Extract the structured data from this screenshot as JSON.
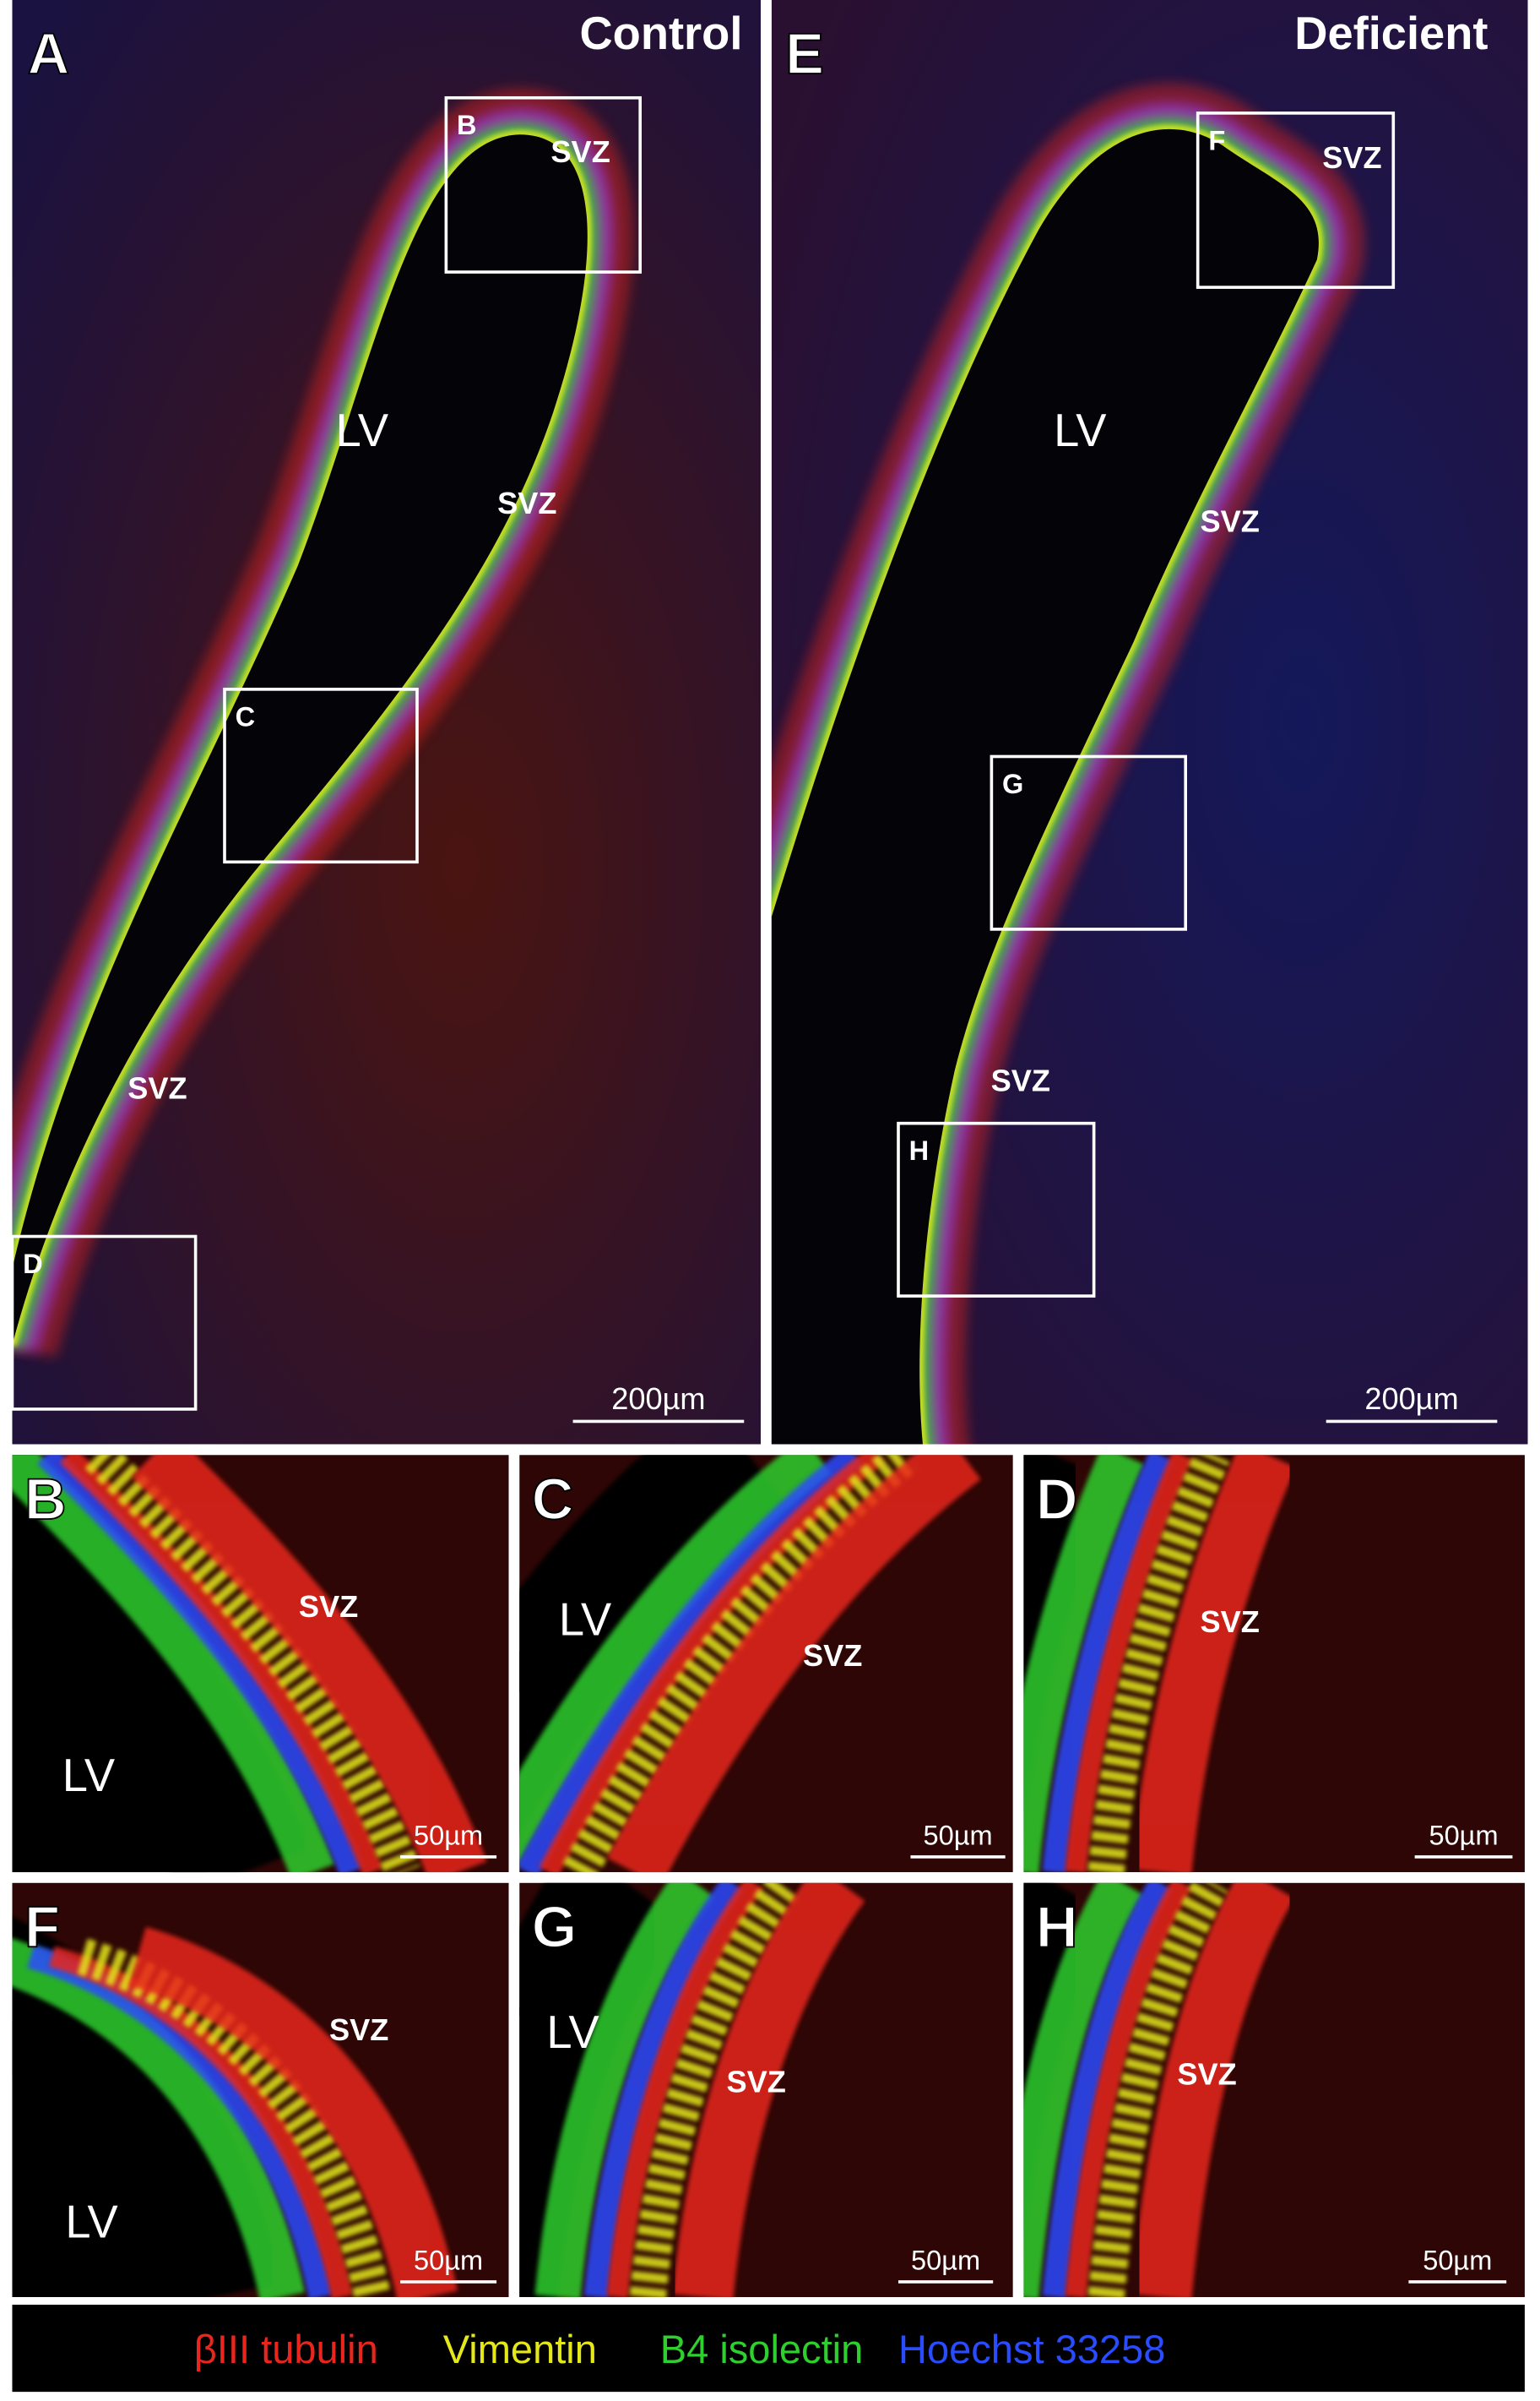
{
  "panels": [
    {
      "letter": "A",
      "title": "Control",
      "labels": [
        "LV",
        "SVZ",
        "SVZ",
        "SVZ"
      ],
      "insets": [
        "B",
        "C",
        "D"
      ],
      "scale_bar": "200µm"
    },
    {
      "letter": "E",
      "title": "Deficient",
      "labels": [
        "LV",
        "SVZ",
        "SVZ",
        "SVZ"
      ],
      "insets": [
        "F",
        "G",
        "H"
      ],
      "scale_bar": "200µm"
    },
    {
      "letter": "B",
      "labels": [
        "LV",
        "SVZ"
      ],
      "scale_bar": "50µm"
    },
    {
      "letter": "C",
      "labels": [
        "LV",
        "SVZ"
      ],
      "scale_bar": "50µm"
    },
    {
      "letter": "D",
      "labels": [
        "SVZ"
      ],
      "scale_bar": "50µm"
    },
    {
      "letter": "F",
      "labels": [
        "LV",
        "SVZ"
      ],
      "scale_bar": "50µm"
    },
    {
      "letter": "G",
      "labels": [
        "LV",
        "SVZ"
      ],
      "scale_bar": "50µm"
    },
    {
      "letter": "H",
      "labels": [
        "SVZ"
      ],
      "scale_bar": "50µm"
    }
  ],
  "legend": [
    {
      "text": "βIII tubulin",
      "color": "#e8261e"
    },
    {
      "text": "Vimentin",
      "color": "#e4e81a"
    },
    {
      "text": "B4 isolectin",
      "color": "#2fcf2f"
    },
    {
      "text": "Hoechst 33258",
      "color": "#2a4cff"
    }
  ]
}
